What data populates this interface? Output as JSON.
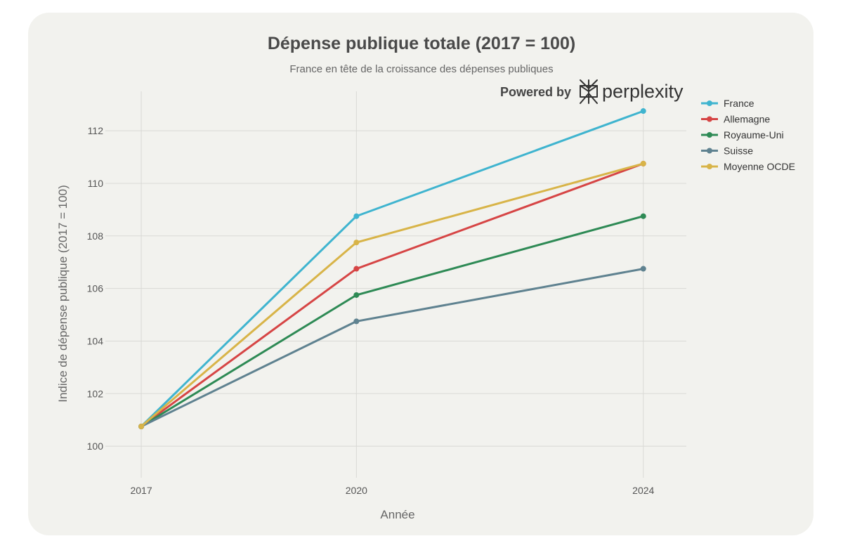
{
  "branding": {
    "powered_by": "Powered by",
    "name": "perplexity",
    "icon": "perplexity-logo-icon"
  },
  "chart_data": {
    "type": "line",
    "title": "Dépense publique totale (2017 = 100)",
    "subtitle": "France en tête de la croissance des dépenses publiques",
    "xlabel": "Année",
    "ylabel": "Indice de dépense publique (2017 = 100)",
    "x": [
      2017,
      2020,
      2024
    ],
    "xlim": [
      2016.5,
      2024.6
    ],
    "ylim": [
      98.8,
      113.5
    ],
    "yticks": [
      100,
      102,
      104,
      106,
      108,
      110,
      112
    ],
    "grid": true,
    "legend_position": "right",
    "series": [
      {
        "name": "France",
        "color": "#3fb4cf",
        "values": [
          100.75,
          108.75,
          112.75
        ]
      },
      {
        "name": "Allemagne",
        "color": "#d64545",
        "values": [
          100.75,
          106.75,
          110.75
        ]
      },
      {
        "name": "Royaume-Uni",
        "color": "#2e8a55",
        "values": [
          100.75,
          105.75,
          108.75
        ]
      },
      {
        "name": "Suisse",
        "color": "#5f8290",
        "values": [
          100.75,
          104.75,
          106.75
        ]
      },
      {
        "name": "Moyenne OCDE",
        "color": "#d8b448",
        "values": [
          100.75,
          107.75,
          110.75
        ]
      }
    ]
  }
}
